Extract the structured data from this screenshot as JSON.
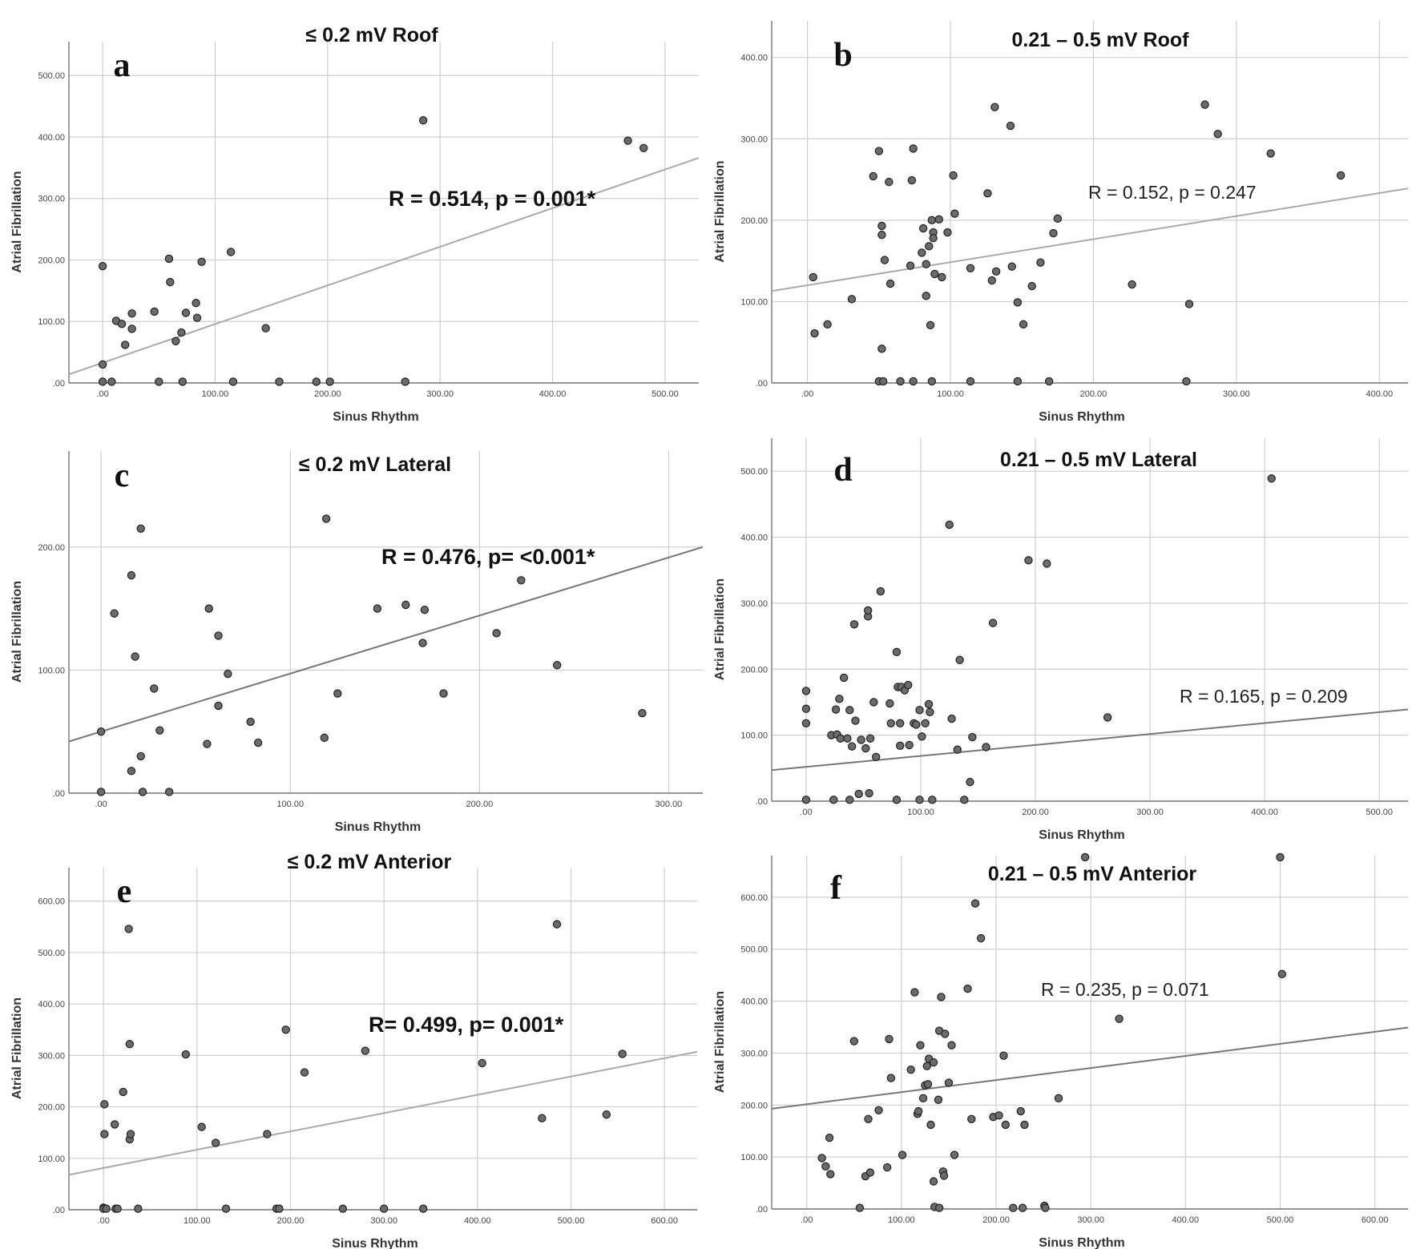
{
  "chart_data": [
    {
      "type": "scatter",
      "panel": "a",
      "title": "≤ 0.2 mV Roof",
      "xlabel": "Sinus Rhythm",
      "ylabel": "Atrial Fibrillation",
      "xlim": [
        -30,
        530
      ],
      "ylim": [
        0,
        555
      ],
      "xticks": [
        0,
        100,
        200,
        300,
        400,
        500
      ],
      "yticks": [
        0,
        100,
        200,
        300,
        400,
        500
      ],
      "xtick_labels": [
        ".00",
        "100.00",
        "200.00",
        "300.00",
        "400.00",
        "500.00"
      ],
      "ytick_labels": [
        ".00",
        "100.00",
        "200.00",
        "300.00",
        "400.00",
        "500.00"
      ],
      "annotation": "R = 0.514, p = 0.001*",
      "annotation_bold": true,
      "fit_line": [
        [
          -30,
          14
        ],
        [
          530,
          366
        ]
      ],
      "fit_color": "#aaaaaa",
      "points": [
        [
          0,
          190
        ],
        [
          0,
          30
        ],
        [
          0,
          2
        ],
        [
          8,
          2
        ],
        [
          12,
          101
        ],
        [
          17,
          96
        ],
        [
          20,
          62
        ],
        [
          26,
          113
        ],
        [
          26,
          88
        ],
        [
          46,
          116
        ],
        [
          50,
          2
        ],
        [
          59,
          202
        ],
        [
          60,
          164
        ],
        [
          65,
          68
        ],
        [
          70,
          82
        ],
        [
          71,
          2
        ],
        [
          74,
          114
        ],
        [
          83,
          130
        ],
        [
          84,
          106
        ],
        [
          88,
          197
        ],
        [
          114,
          213
        ],
        [
          116,
          2
        ],
        [
          145,
          89
        ],
        [
          157,
          2
        ],
        [
          190,
          2
        ],
        [
          202,
          2
        ],
        [
          269,
          2
        ],
        [
          285,
          427
        ],
        [
          467,
          394
        ],
        [
          481,
          382
        ]
      ],
      "grid": true
    },
    {
      "type": "scatter",
      "panel": "b",
      "title": "0.21 – 0.5 mV Roof",
      "xlabel": "Sinus Rhythm",
      "ylabel": "Atrial Fibrillation",
      "xlim": [
        -25,
        420
      ],
      "ylim": [
        0,
        445
      ],
      "xticks": [
        0,
        100,
        200,
        300,
        400
      ],
      "yticks": [
        0,
        100,
        200,
        300,
        400
      ],
      "xtick_labels": [
        ".00",
        "100.00",
        "200.00",
        "300.00",
        "400.00"
      ],
      "ytick_labels": [
        ".00",
        "100.00",
        "200.00",
        "300.00",
        "400.00"
      ],
      "annotation": "R = 0.152, p = 0.247",
      "annotation_bold": false,
      "fit_line": [
        [
          -25,
          113
        ],
        [
          420,
          239
        ]
      ],
      "fit_color": "#aaaaaa",
      "points": [
        [
          4,
          130
        ],
        [
          5,
          61
        ],
        [
          14,
          72
        ],
        [
          31,
          103
        ],
        [
          46,
          254
        ],
        [
          50,
          285
        ],
        [
          50,
          2
        ],
        [
          52,
          193
        ],
        [
          52,
          182
        ],
        [
          52,
          42
        ],
        [
          53,
          2
        ],
        [
          54,
          151
        ],
        [
          57,
          247
        ],
        [
          58,
          122
        ],
        [
          65,
          2
        ],
        [
          72,
          144
        ],
        [
          73,
          249
        ],
        [
          74,
          288
        ],
        [
          74,
          2
        ],
        [
          80,
          160
        ],
        [
          81,
          190
        ],
        [
          83,
          146
        ],
        [
          83,
          107
        ],
        [
          85,
          168
        ],
        [
          86,
          71
        ],
        [
          87,
          200
        ],
        [
          87,
          2
        ],
        [
          88,
          185
        ],
        [
          88,
          178
        ],
        [
          89,
          134
        ],
        [
          92,
          201
        ],
        [
          94,
          130
        ],
        [
          98,
          185
        ],
        [
          102,
          255
        ],
        [
          103,
          208
        ],
        [
          114,
          141
        ],
        [
          114,
          2
        ],
        [
          126,
          233
        ],
        [
          129,
          126
        ],
        [
          131,
          339
        ],
        [
          132,
          137
        ],
        [
          142,
          316
        ],
        [
          143,
          143
        ],
        [
          147,
          99
        ],
        [
          147,
          2
        ],
        [
          151,
          72
        ],
        [
          157,
          119
        ],
        [
          163,
          148
        ],
        [
          169,
          2
        ],
        [
          172,
          184
        ],
        [
          175,
          202
        ],
        [
          227,
          121
        ],
        [
          265,
          2
        ],
        [
          267,
          97
        ],
        [
          278,
          342
        ],
        [
          287,
          306
        ],
        [
          324,
          282
        ],
        [
          373,
          255
        ]
      ],
      "grid": true
    },
    {
      "type": "scatter",
      "panel": "c",
      "title": "≤ 0.2 mV Lateral",
      "xlabel": "Sinus Rhythm",
      "ylabel": "Atrial Fibrillation",
      "xlim": [
        -17,
        318
      ],
      "ylim": [
        0,
        278
      ],
      "xticks": [
        0,
        100,
        200,
        300
      ],
      "yticks": [
        0,
        100,
        200
      ],
      "xtick_labels": [
        ".00",
        "100.00",
        "200.00",
        "300.00"
      ],
      "ytick_labels": [
        ".00",
        "100.00",
        "200.00"
      ],
      "annotation": "R = 0.476, p= <0.001*",
      "annotation_bold": true,
      "fit_line": [
        [
          -17,
          42
        ],
        [
          318,
          200
        ]
      ],
      "fit_color": "#777777",
      "points": [
        [
          0,
          50
        ],
        [
          0,
          1
        ],
        [
          7,
          146
        ],
        [
          16,
          177
        ],
        [
          16,
          18
        ],
        [
          18,
          111
        ],
        [
          21,
          30
        ],
        [
          21,
          215
        ],
        [
          22,
          1
        ],
        [
          28,
          85
        ],
        [
          31,
          51
        ],
        [
          36,
          1
        ],
        [
          56,
          40
        ],
        [
          57,
          150
        ],
        [
          62,
          128
        ],
        [
          62,
          71
        ],
        [
          67,
          97
        ],
        [
          79,
          58
        ],
        [
          83,
          41
        ],
        [
          118,
          45
        ],
        [
          119,
          223
        ],
        [
          125,
          81
        ],
        [
          146,
          150
        ],
        [
          161,
          153
        ],
        [
          170,
          122
        ],
        [
          171,
          149
        ],
        [
          181,
          81
        ],
        [
          209,
          130
        ],
        [
          222,
          173
        ],
        [
          241,
          104
        ],
        [
          286,
          65
        ]
      ],
      "grid": true
    },
    {
      "type": "scatter",
      "panel": "d",
      "title": "0.21 – 0.5 mV Lateral",
      "xlabel": "Sinus Rhythm",
      "ylabel": "Atrial Fibrillation",
      "xlim": [
        -30,
        525
      ],
      "ylim": [
        0,
        550
      ],
      "xticks": [
        0,
        100,
        200,
        300,
        400,
        500
      ],
      "yticks": [
        0,
        100,
        200,
        300,
        400,
        500
      ],
      "xtick_labels": [
        ".00",
        "100.00",
        "200.00",
        "300.00",
        "400.00",
        "500.00"
      ],
      "ytick_labels": [
        ".00",
        "100.00",
        "200.00",
        "300.00",
        "400.00",
        "500.00"
      ],
      "annotation": "R = 0.165, p = 0.209",
      "annotation_bold": false,
      "fit_line": [
        [
          -30,
          47
        ],
        [
          525,
          139
        ]
      ],
      "fit_color": "#777777",
      "points": [
        [
          0,
          167
        ],
        [
          0,
          140
        ],
        [
          0,
          118
        ],
        [
          0,
          2
        ],
        [
          22,
          100
        ],
        [
          24,
          2
        ],
        [
          26,
          139
        ],
        [
          27,
          101
        ],
        [
          29,
          155
        ],
        [
          30,
          95
        ],
        [
          33,
          187
        ],
        [
          36,
          95
        ],
        [
          38,
          138
        ],
        [
          38,
          2
        ],
        [
          40,
          83
        ],
        [
          42,
          268
        ],
        [
          43,
          122
        ],
        [
          46,
          11
        ],
        [
          48,
          93
        ],
        [
          52,
          80
        ],
        [
          54,
          280
        ],
        [
          54,
          289
        ],
        [
          55,
          12
        ],
        [
          56,
          95
        ],
        [
          59,
          150
        ],
        [
          61,
          67
        ],
        [
          65,
          318
        ],
        [
          73,
          148
        ],
        [
          74,
          118
        ],
        [
          79,
          226
        ],
        [
          79,
          2
        ],
        [
          80,
          173
        ],
        [
          82,
          84
        ],
        [
          82,
          118
        ],
        [
          83,
          173
        ],
        [
          86,
          168
        ],
        [
          89,
          176
        ],
        [
          90,
          85
        ],
        [
          94,
          118
        ],
        [
          96,
          116
        ],
        [
          99,
          138
        ],
        [
          99,
          2
        ],
        [
          101,
          98
        ],
        [
          104,
          118
        ],
        [
          107,
          147
        ],
        [
          108,
          135
        ],
        [
          110,
          2
        ],
        [
          125,
          419
        ],
        [
          127,
          125
        ],
        [
          132,
          78
        ],
        [
          134,
          214
        ],
        [
          138,
          2
        ],
        [
          143,
          29
        ],
        [
          145,
          97
        ],
        [
          157,
          82
        ],
        [
          163,
          270
        ],
        [
          194,
          365
        ],
        [
          210,
          360
        ],
        [
          263,
          127
        ],
        [
          406,
          489
        ]
      ],
      "grid": true
    },
    {
      "type": "scatter",
      "panel": "e",
      "title": "≤ 0.2 mV Anterior",
      "xlabel": "Sinus Rhythm",
      "ylabel": "Atrial Fibrillation",
      "xlim": [
        -37,
        635
      ],
      "ylim": [
        0,
        665
      ],
      "xticks": [
        0,
        100,
        200,
        300,
        400,
        500,
        600
      ],
      "yticks": [
        0,
        100,
        200,
        300,
        400,
        500,
        600
      ],
      "xtick_labels": [
        ".00",
        "100.00",
        "200.00",
        "300.00",
        "400.00",
        "500.00",
        "600.00"
      ],
      "ytick_labels": [
        ".00",
        "100.00",
        "200.00",
        "300.00",
        "400.00",
        "500.00",
        "600.00"
      ],
      "annotation": "R= 0.499, p= 0.001*",
      "annotation_bold": true,
      "fit_line": [
        [
          -37,
          68
        ],
        [
          635,
          307
        ]
      ],
      "fit_color": "#aaaaaa",
      "points": [
        [
          0,
          4
        ],
        [
          0,
          2
        ],
        [
          1,
          205
        ],
        [
          1,
          147
        ],
        [
          3,
          2
        ],
        [
          12,
          166
        ],
        [
          13,
          2
        ],
        [
          15,
          2
        ],
        [
          21,
          229
        ],
        [
          27,
          546
        ],
        [
          28,
          137
        ],
        [
          28,
          322
        ],
        [
          29,
          147
        ],
        [
          37,
          2
        ],
        [
          88,
          302
        ],
        [
          105,
          161
        ],
        [
          120,
          130
        ],
        [
          131,
          2
        ],
        [
          175,
          147
        ],
        [
          185,
          2
        ],
        [
          188,
          2
        ],
        [
          195,
          350
        ],
        [
          215,
          267
        ],
        [
          256,
          2
        ],
        [
          280,
          309
        ],
        [
          300,
          2
        ],
        [
          342,
          2
        ],
        [
          405,
          285
        ],
        [
          469,
          178
        ],
        [
          485,
          555
        ],
        [
          538,
          185
        ],
        [
          555,
          303
        ]
      ],
      "grid": true
    },
    {
      "type": "scatter",
      "panel": "f",
      "title": "0.21 – 0.5 mV Anterior",
      "xlabel": "Sinus Rhythm",
      "ylabel": "Atrial Fibrillation",
      "xlim": [
        -37,
        635
      ],
      "ylim": [
        0,
        680
      ],
      "xticks": [
        0,
        100,
        200,
        300,
        400,
        500,
        600
      ],
      "yticks": [
        0,
        100,
        200,
        300,
        400,
        500,
        600
      ],
      "xtick_labels": [
        ".00",
        "100.00",
        "200.00",
        "300.00",
        "400.00",
        "500.00",
        "600.00"
      ],
      "ytick_labels": [
        ".00",
        "100.00",
        "200.00",
        "300.00",
        "400.00",
        "500.00",
        "600.00"
      ],
      "annotation": "R = 0.235, p = 0.071",
      "annotation_bold": false,
      "fit_line": [
        [
          -37,
          193
        ],
        [
          635,
          349
        ]
      ],
      "fit_color": "#777777",
      "points": [
        [
          16,
          98
        ],
        [
          20,
          82
        ],
        [
          24,
          137
        ],
        [
          25,
          67
        ],
        [
          50,
          323
        ],
        [
          56,
          2
        ],
        [
          62,
          63
        ],
        [
          65,
          173
        ],
        [
          67,
          70
        ],
        [
          76,
          190
        ],
        [
          85,
          80
        ],
        [
          87,
          327
        ],
        [
          89,
          252
        ],
        [
          101,
          104
        ],
        [
          110,
          268
        ],
        [
          114,
          417
        ],
        [
          117,
          183
        ],
        [
          118,
          188
        ],
        [
          120,
          315
        ],
        [
          123,
          213
        ],
        [
          125,
          238
        ],
        [
          127,
          275
        ],
        [
          128,
          240
        ],
        [
          129,
          289
        ],
        [
          131,
          162
        ],
        [
          134,
          282
        ],
        [
          134,
          53
        ],
        [
          135,
          4
        ],
        [
          139,
          210
        ],
        [
          140,
          2
        ],
        [
          140,
          343
        ],
        [
          142,
          408
        ],
        [
          144,
          72
        ],
        [
          145,
          64
        ],
        [
          146,
          337
        ],
        [
          150,
          243
        ],
        [
          153,
          315
        ],
        [
          156,
          104
        ],
        [
          170,
          424
        ],
        [
          174,
          173
        ],
        [
          178,
          588
        ],
        [
          184,
          521
        ],
        [
          197,
          177
        ],
        [
          203,
          180
        ],
        [
          208,
          295
        ],
        [
          210,
          162
        ],
        [
          218,
          2
        ],
        [
          226,
          188
        ],
        [
          228,
          2
        ],
        [
          230,
          162
        ],
        [
          251,
          6
        ],
        [
          252,
          2
        ],
        [
          266,
          213
        ],
        [
          294,
          677
        ],
        [
          330,
          366
        ],
        [
          500,
          677
        ],
        [
          502,
          452
        ]
      ],
      "grid": true
    }
  ]
}
